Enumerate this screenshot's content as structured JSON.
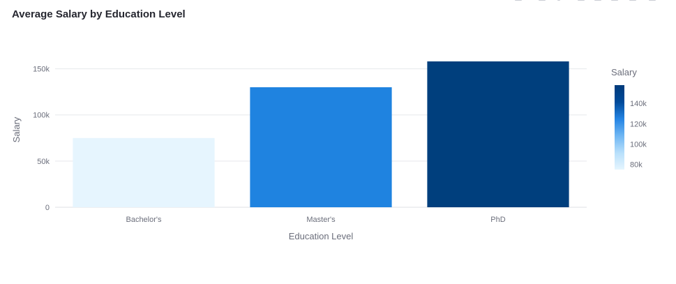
{
  "chart_title": "Average Salary by Education Level",
  "toolbar": {
    "icons": [
      "camera-icon",
      "zoom-icon",
      "pan-icon",
      "zoom-in-icon",
      "zoom-out-icon",
      "autoscale-icon",
      "reset-axes-icon",
      "fullscreen-icon"
    ]
  },
  "chart_data": {
    "type": "bar",
    "title": "Average Salary by Education Level",
    "xlabel": "Education Level",
    "ylabel": "Salary",
    "categories": [
      "Bachelor's",
      "Master's",
      "PhD"
    ],
    "values": [
      75000,
      130000,
      158000
    ],
    "ylim": [
      0,
      158000
    ],
    "yticks": [
      0,
      50000,
      100000,
      150000
    ],
    "ytick_labels": [
      "0",
      "50k",
      "100k",
      "150k"
    ],
    "grid": true,
    "colorbar": {
      "title": "Salary",
      "range": [
        75000,
        158000
      ],
      "ticks": [
        80000,
        100000,
        120000,
        140000
      ],
      "tick_labels": [
        "80k",
        "100k",
        "120k",
        "140k"
      ],
      "colors": [
        "#e5f5fe",
        "#b7dffb",
        "#6fb6f3",
        "#2484e3",
        "#004a9a",
        "#003a7a"
      ]
    },
    "colors": {
      "bars": [
        "#e6f5fe",
        "#1f83e0",
        "#003f7d"
      ],
      "grid": "#e6e8ec",
      "axis_text": "#6b6e7b",
      "title": "#262730"
    }
  }
}
